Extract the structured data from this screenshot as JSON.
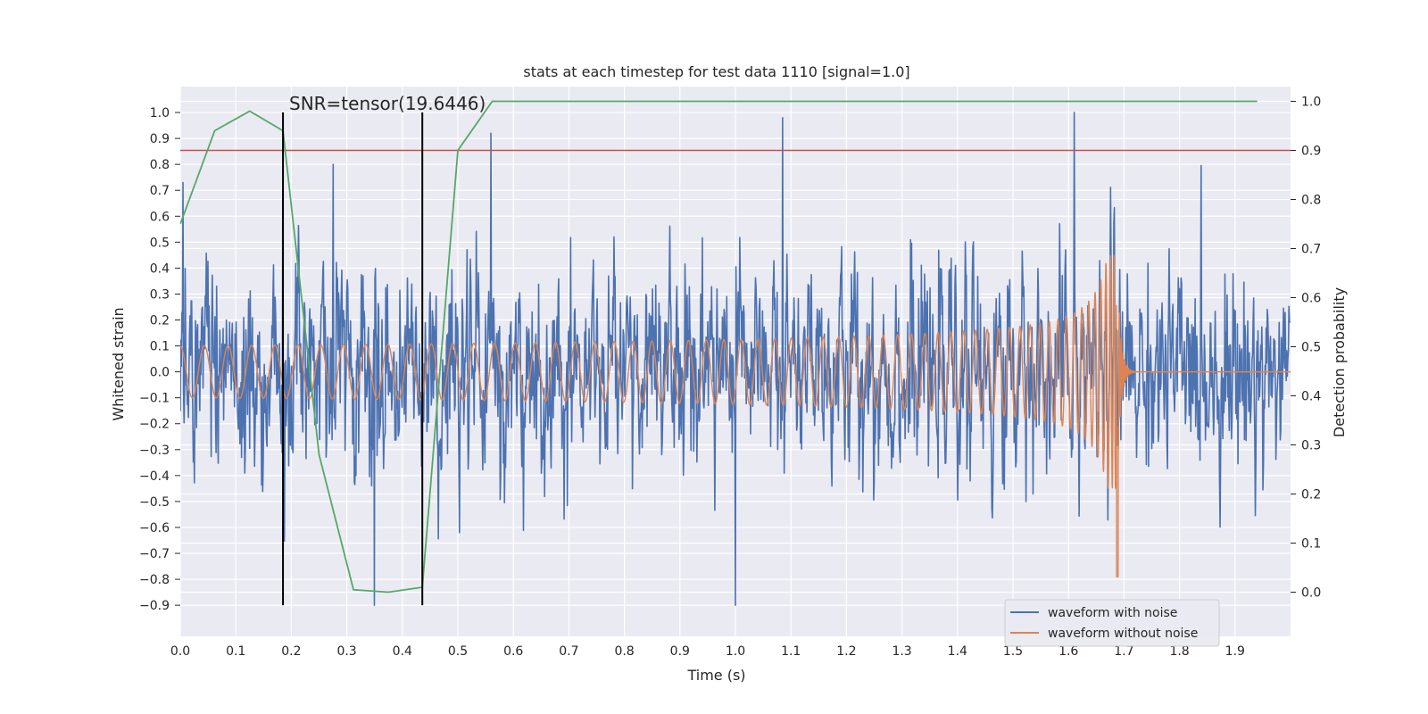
{
  "chart_data": {
    "type": "line",
    "title": "stats at each timestep for test data 1110 [signal=1.0]",
    "xlabel": "Time (s)",
    "ylabel": "Whitened strain",
    "y2label": "Detection probability",
    "xlim": [
      0.0,
      2.0
    ],
    "ylim": [
      -1.02,
      1.1
    ],
    "y2lim": [
      -0.09,
      1.03
    ],
    "x_ticks": [
      0.0,
      0.1,
      0.2,
      0.3,
      0.4,
      0.5,
      0.6,
      0.7,
      0.8,
      0.9,
      1.0,
      1.1,
      1.2,
      1.3,
      1.4,
      1.5,
      1.6,
      1.7,
      1.8,
      1.9
    ],
    "y_ticks": [
      -0.9,
      -0.8,
      -0.7,
      -0.6,
      -0.5,
      -0.4,
      -0.3,
      -0.2,
      -0.1,
      0.0,
      0.1,
      0.2,
      0.3,
      0.4,
      0.5,
      0.6,
      0.7,
      0.8,
      0.9,
      1.0
    ],
    "y2_ticks": [
      0.0,
      0.1,
      0.2,
      0.3,
      0.4,
      0.5,
      0.6,
      0.7,
      0.8,
      0.9,
      1.0
    ],
    "grid": true,
    "legend_position": "lower-right",
    "annotation": {
      "text": "SNR=tensor(19.6446)",
      "x": 0.2,
      "y": 1.0
    },
    "vlines": [
      {
        "x": 0.185,
        "ymin": -0.9,
        "ymax": 1.0,
        "color": "#000000"
      },
      {
        "x": 0.436,
        "ymin": -0.9,
        "ymax": 1.0,
        "color": "#000000"
      }
    ],
    "hline": {
      "y2": 0.9,
      "color": "#c44e52"
    },
    "series": [
      {
        "name": "waveform with noise",
        "color": "#4c72b0",
        "axis": "left",
        "kind": "noise",
        "duration": 2.0,
        "samples": 2048,
        "envelope_peak": 0.9,
        "peaks": [
          [
            0.005,
            0.73
          ],
          [
            0.185,
            0.7
          ],
          [
            0.275,
            0.8
          ],
          [
            0.35,
            -0.9
          ],
          [
            0.56,
            0.92
          ],
          [
            1.0,
            -0.9
          ],
          [
            1.085,
            0.98
          ],
          [
            1.61,
            1.0
          ]
        ]
      },
      {
        "name": "waveform without noise",
        "color": "#dd8452",
        "axis": "left",
        "kind": "chirp",
        "duration": 2.0,
        "merger_time": 1.69,
        "start_frequency_hz": 23,
        "initial_amplitude": 0.1,
        "peak_amplitude": 0.42,
        "min_amplitude": -0.79
      },
      {
        "name": "detection probability",
        "color": "#55a868",
        "axis": "right",
        "x": [
          0.0,
          0.062,
          0.125,
          0.185,
          0.25,
          0.312,
          0.375,
          0.436,
          0.5,
          0.562,
          1.94
        ],
        "y": [
          0.75,
          0.94,
          0.98,
          0.94,
          0.28,
          0.005,
          0.0,
          0.01,
          0.9,
          1.0,
          1.0
        ]
      }
    ]
  }
}
